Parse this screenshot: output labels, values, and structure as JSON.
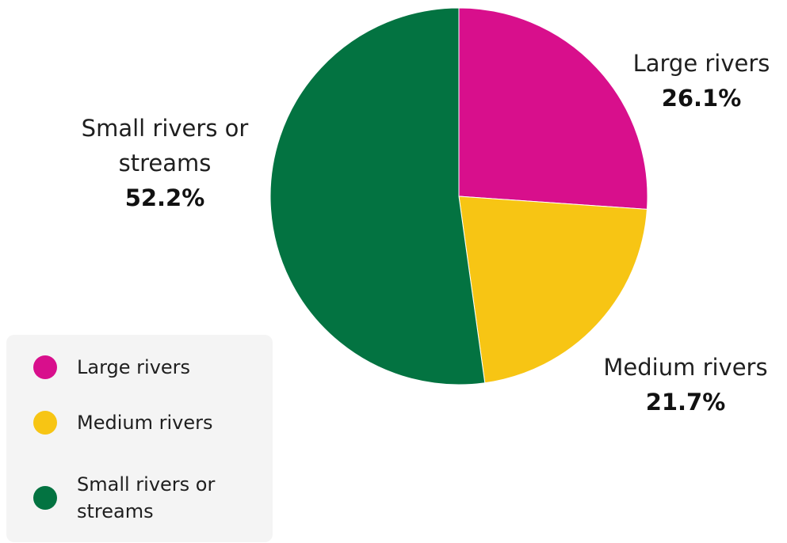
{
  "chart_data": {
    "type": "pie",
    "title": "",
    "slices": [
      {
        "label": "Large rivers",
        "value": 26.1,
        "display": "26.1%",
        "color": "#d80f8c"
      },
      {
        "label": "Medium rivers",
        "value": 21.7,
        "display": "21.7%",
        "color": "#f7c514"
      },
      {
        "label": "Small rivers or streams",
        "value": 52.2,
        "display": "52.2%",
        "color": "#037341"
      }
    ],
    "legend": {
      "placement": "bottom-left",
      "items": [
        {
          "label": "Large rivers",
          "color": "#d80f8c"
        },
        {
          "label": "Medium rivers",
          "color": "#f7c514"
        },
        {
          "label": "Small rivers or streams",
          "color": "#037341"
        }
      ]
    }
  }
}
